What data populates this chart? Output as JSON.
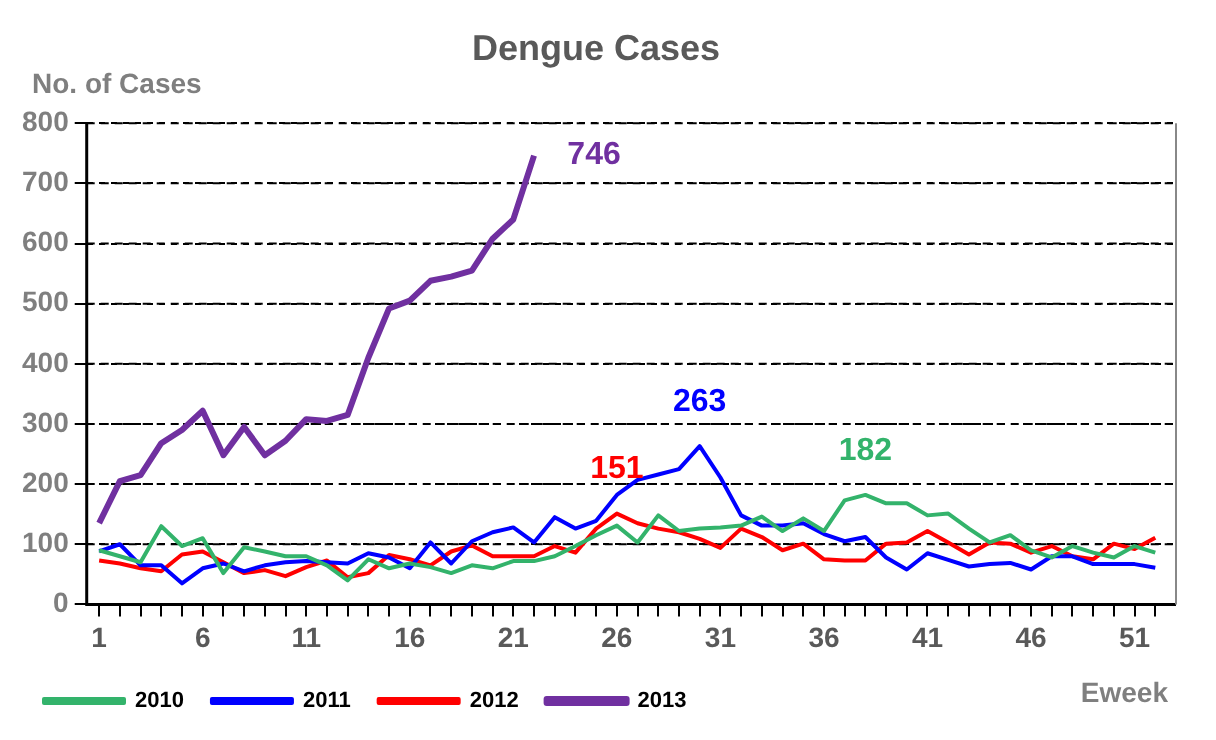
{
  "chart_data": {
    "type": "line",
    "title": "Dengue Cases",
    "xlabel": "Eweek",
    "ylabel": "No. of Cases",
    "x": [
      1,
      2,
      3,
      4,
      5,
      6,
      7,
      8,
      9,
      10,
      11,
      12,
      13,
      14,
      15,
      16,
      17,
      18,
      19,
      20,
      21,
      22,
      23,
      24,
      25,
      26,
      27,
      28,
      29,
      30,
      31,
      32,
      33,
      34,
      35,
      36,
      37,
      38,
      39,
      40,
      41,
      42,
      43,
      44,
      45,
      46,
      47,
      48,
      49,
      50,
      51,
      52
    ],
    "series": [
      {
        "name": "2010",
        "color": "#33b36b",
        "values": [
          90,
          80,
          70,
          130,
          97,
          110,
          52,
          95,
          88,
          80,
          80,
          65,
          40,
          75,
          60,
          68,
          62,
          52,
          65,
          60,
          72,
          72,
          80,
          97,
          115,
          131,
          103,
          148,
          122,
          126,
          128,
          131,
          146,
          122,
          143,
          122,
          173,
          182,
          168,
          168,
          148,
          151,
          126,
          103,
          115,
          90,
          78,
          97,
          86,
          78,
          97,
          86
        ]
      },
      {
        "name": "2011",
        "color": "#0000ff",
        "values": [
          88,
          100,
          65,
          65,
          35,
          60,
          68,
          55,
          65,
          70,
          72,
          70,
          68,
          85,
          78,
          60,
          103,
          68,
          105,
          120,
          128,
          103,
          145,
          126,
          139,
          182,
          207,
          216,
          225,
          263,
          211,
          148,
          131,
          131,
          135,
          117,
          105,
          112,
          78,
          58,
          85,
          74,
          63,
          67,
          69,
          58,
          80,
          80,
          67,
          67,
          67,
          61
        ]
      },
      {
        "name": "2012",
        "color": "#ff0000",
        "values": [
          73,
          68,
          60,
          55,
          83,
          88,
          70,
          52,
          57,
          47,
          62,
          73,
          45,
          52,
          82,
          75,
          65,
          88,
          98,
          80,
          80,
          80,
          97,
          86,
          126,
          151,
          135,
          126,
          120,
          109,
          94,
          126,
          112,
          90,
          101,
          75,
          73,
          73,
          101,
          103,
          122,
          103,
          83,
          103,
          101,
          86,
          97,
          80,
          75,
          101,
          92,
          111
        ]
      },
      {
        "name": "2013",
        "color": "#7030a0",
        "values": [
          135,
          205,
          215,
          268,
          290,
          322,
          248,
          295,
          248,
          272,
          308,
          305,
          315,
          410,
          492,
          505,
          538,
          545,
          555,
          608,
          640,
          746,
          null,
          null,
          null,
          null,
          null,
          null,
          null,
          null,
          null,
          null,
          null,
          null,
          null,
          null,
          null,
          null,
          null,
          null,
          null,
          null,
          null,
          null,
          null,
          null,
          null,
          null,
          null,
          null,
          null,
          null
        ]
      }
    ],
    "xlim": [
      0.4,
      53
    ],
    "xticks": [
      1,
      {
        "value": 2,
        "label": null
      },
      {
        "value": 3,
        "label": null
      },
      {
        "value": 4,
        "label": null
      },
      {
        "value": 5,
        "label": null
      },
      6,
      {
        "value": 7,
        "label": null
      },
      {
        "value": 8,
        "label": null
      },
      {
        "value": 9,
        "label": null
      },
      {
        "value": 10,
        "label": null
      },
      11,
      {
        "value": 12,
        "label": null
      },
      {
        "value": 13,
        "label": null
      },
      {
        "value": 14,
        "label": null
      },
      {
        "value": 15,
        "label": null
      },
      16,
      {
        "value": 17,
        "label": null
      },
      {
        "value": 18,
        "label": null
      },
      {
        "value": 19,
        "label": null
      },
      {
        "value": 20,
        "label": null
      },
      21,
      {
        "value": 22,
        "label": null
      },
      {
        "value": 23,
        "label": null
      },
      {
        "value": 24,
        "label": null
      },
      {
        "value": 25,
        "label": null
      },
      26,
      {
        "value": 27,
        "label": null
      },
      {
        "value": 28,
        "label": null
      },
      {
        "value": 29,
        "label": null
      },
      {
        "value": 30,
        "label": null
      },
      31,
      {
        "value": 32,
        "label": null
      },
      {
        "value": 33,
        "label": null
      },
      {
        "value": 34,
        "label": null
      },
      {
        "value": 35,
        "label": null
      },
      36,
      {
        "value": 37,
        "label": null
      },
      {
        "value": 38,
        "label": null
      },
      {
        "value": 39,
        "label": null
      },
      {
        "value": 40,
        "label": null
      },
      41,
      {
        "value": 42,
        "label": null
      },
      {
        "value": 43,
        "label": null
      },
      {
        "value": 44,
        "label": null
      },
      {
        "value": 45,
        "label": null
      },
      46,
      {
        "value": 47,
        "label": null
      },
      {
        "value": 48,
        "label": null
      },
      {
        "value": 49,
        "label": null
      },
      {
        "value": 50,
        "label": null
      },
      51,
      {
        "value": 52,
        "label": null
      }
    ],
    "ylim": [
      0,
      800
    ],
    "yticks": [
      0,
      100,
      200,
      300,
      400,
      500,
      600,
      700,
      800
    ],
    "grid": "y",
    "legend": "bottom",
    "marker": "none",
    "line_style": "solid",
    "annotations": [
      {
        "text": "746",
        "x": 22,
        "y": 746
      },
      {
        "text": "263",
        "x": 30,
        "y": 263
      },
      {
        "text": "151",
        "x": 26,
        "y": 151
      },
      {
        "text": "182",
        "x": 38,
        "y": 182
      }
    ]
  }
}
